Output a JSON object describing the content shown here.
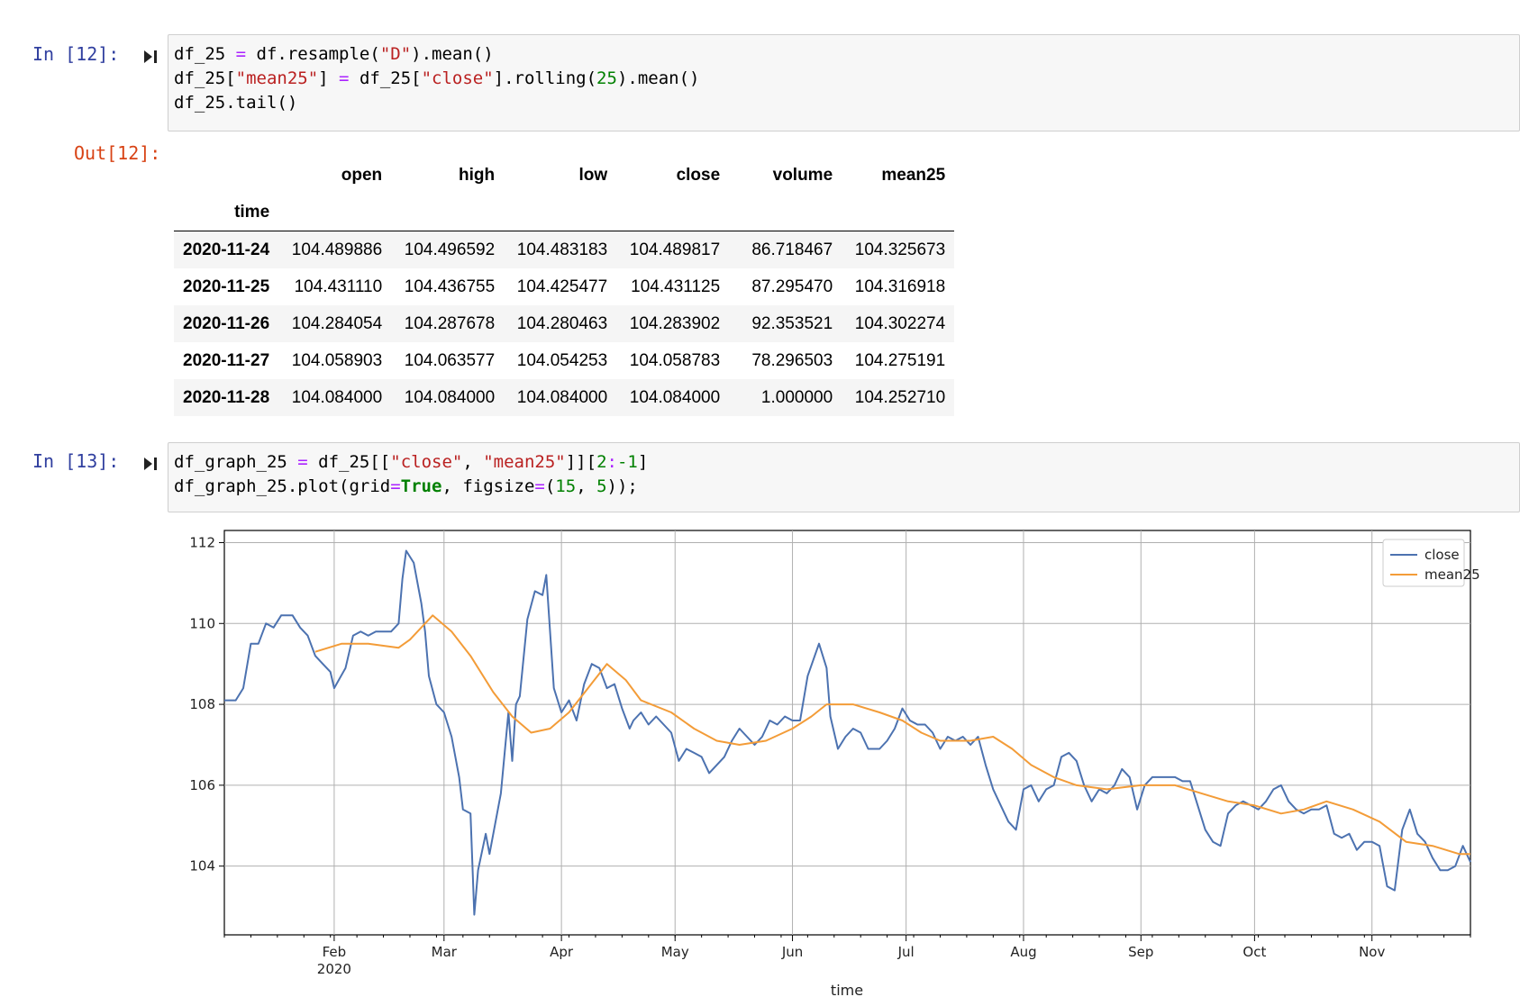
{
  "cells": {
    "in12": {
      "prompt": "In [12]:",
      "out_prompt": "Out[12]:"
    },
    "in13": {
      "prompt": "In [13]:"
    }
  },
  "code12": {
    "l1": {
      "a": "df_25 ",
      "b": "=",
      "c": " df.resample(",
      "d": "\"D\"",
      "e": ").mean()"
    },
    "l2": {
      "a": "df_25[",
      "b": "\"mean25\"",
      "c": "] ",
      "d": "=",
      "e": " df_25[",
      "f": "\"close\"",
      "g": "].rolling(",
      "h": "25",
      "i": ").mean()"
    },
    "l3": {
      "a": "df_25.tail()"
    }
  },
  "code13": {
    "l1": {
      "a": "df_graph_25 ",
      "b": "=",
      "c": " df_25[[",
      "d": "\"close\"",
      "e": ", ",
      "f": "\"mean25\"",
      "g": "]][",
      "h": "2",
      "i": ":",
      "j": "-1",
      "k": "]"
    },
    "l2": {
      "a": "df_graph_25.plot(grid",
      "b": "=",
      "c": "True",
      "d": ", figsize",
      "e": "=",
      "f": "(",
      "g": "15",
      "h": ", ",
      "i": "5",
      "j": "));"
    }
  },
  "table": {
    "columns": [
      "open",
      "high",
      "low",
      "close",
      "volume",
      "mean25"
    ],
    "index_name": "time",
    "rows": [
      {
        "index": "2020-11-24",
        "values": [
          "104.489886",
          "104.496592",
          "104.483183",
          "104.489817",
          "86.718467",
          "104.325673"
        ]
      },
      {
        "index": "2020-11-25",
        "values": [
          "104.431110",
          "104.436755",
          "104.425477",
          "104.431125",
          "87.295470",
          "104.316918"
        ]
      },
      {
        "index": "2020-11-26",
        "values": [
          "104.284054",
          "104.287678",
          "104.280463",
          "104.283902",
          "92.353521",
          "104.302274"
        ]
      },
      {
        "index": "2020-11-27",
        "values": [
          "104.058903",
          "104.063577",
          "104.054253",
          "104.058783",
          "78.296503",
          "104.275191"
        ]
      },
      {
        "index": "2020-11-28",
        "values": [
          "104.084000",
          "104.084000",
          "104.084000",
          "104.084000",
          "1.000000",
          "104.252710"
        ]
      }
    ]
  },
  "colors": {
    "close": "#4c72b0",
    "mean25": "#f39c38",
    "prompt_in": "#303f9f",
    "prompt_out": "#d84315"
  },
  "chart_data": {
    "type": "line",
    "xlabel": "time",
    "ylabel": "",
    "grid": true,
    "legend_position": "top-right",
    "x_tick_labels": [
      "Feb",
      "Mar",
      "Apr",
      "May",
      "Jun",
      "Jul",
      "Aug",
      "Sep",
      "Oct",
      "Nov"
    ],
    "x_tick_year": "2020",
    "x_range": [
      "2020-01-03",
      "2020-11-27"
    ],
    "ylim": [
      102.3,
      112.3
    ],
    "y_ticks": [
      104,
      106,
      108,
      110,
      112
    ],
    "series": [
      {
        "name": "close",
        "points": [
          [
            "2020-01-03",
            108.1
          ],
          [
            "2020-01-06",
            108.1
          ],
          [
            "2020-01-08",
            108.4
          ],
          [
            "2020-01-10",
            109.5
          ],
          [
            "2020-01-12",
            109.5
          ],
          [
            "2020-01-14",
            110.0
          ],
          [
            "2020-01-16",
            109.9
          ],
          [
            "2020-01-18",
            110.2
          ],
          [
            "2020-01-21",
            110.2
          ],
          [
            "2020-01-23",
            109.9
          ],
          [
            "2020-01-25",
            109.7
          ],
          [
            "2020-01-27",
            109.2
          ],
          [
            "2020-01-29",
            109.0
          ],
          [
            "2020-01-31",
            108.8
          ],
          [
            "2020-02-01",
            108.4
          ],
          [
            "2020-02-04",
            108.9
          ],
          [
            "2020-02-06",
            109.7
          ],
          [
            "2020-02-08",
            109.8
          ],
          [
            "2020-02-10",
            109.7
          ],
          [
            "2020-02-12",
            109.8
          ],
          [
            "2020-02-14",
            109.8
          ],
          [
            "2020-02-16",
            109.8
          ],
          [
            "2020-02-18",
            110.0
          ],
          [
            "2020-02-19",
            111.1
          ],
          [
            "2020-02-20",
            111.8
          ],
          [
            "2020-02-22",
            111.5
          ],
          [
            "2020-02-24",
            110.5
          ],
          [
            "2020-02-25",
            109.8
          ],
          [
            "2020-02-26",
            108.7
          ],
          [
            "2020-02-28",
            108.0
          ],
          [
            "2020-03-01",
            107.8
          ],
          [
            "2020-03-03",
            107.2
          ],
          [
            "2020-03-05",
            106.2
          ],
          [
            "2020-03-06",
            105.4
          ],
          [
            "2020-03-08",
            105.3
          ],
          [
            "2020-03-09",
            102.8
          ],
          [
            "2020-03-10",
            103.9
          ],
          [
            "2020-03-12",
            104.8
          ],
          [
            "2020-03-13",
            104.3
          ],
          [
            "2020-03-16",
            105.8
          ],
          [
            "2020-03-18",
            107.8
          ],
          [
            "2020-03-19",
            106.6
          ],
          [
            "2020-03-20",
            108.0
          ],
          [
            "2020-03-21",
            108.2
          ],
          [
            "2020-03-23",
            110.1
          ],
          [
            "2020-03-25",
            110.8
          ],
          [
            "2020-03-27",
            110.7
          ],
          [
            "2020-03-28",
            111.2
          ],
          [
            "2020-03-30",
            108.4
          ],
          [
            "2020-04-01",
            107.8
          ],
          [
            "2020-04-03",
            108.1
          ],
          [
            "2020-04-05",
            107.6
          ],
          [
            "2020-04-07",
            108.5
          ],
          [
            "2020-04-09",
            109.0
          ],
          [
            "2020-04-11",
            108.9
          ],
          [
            "2020-04-13",
            108.4
          ],
          [
            "2020-04-15",
            108.5
          ],
          [
            "2020-04-17",
            107.9
          ],
          [
            "2020-04-19",
            107.4
          ],
          [
            "2020-04-20",
            107.6
          ],
          [
            "2020-04-22",
            107.8
          ],
          [
            "2020-04-24",
            107.5
          ],
          [
            "2020-04-26",
            107.7
          ],
          [
            "2020-04-28",
            107.5
          ],
          [
            "2020-04-30",
            107.3
          ],
          [
            "2020-05-02",
            106.6
          ],
          [
            "2020-05-04",
            106.9
          ],
          [
            "2020-05-06",
            106.8
          ],
          [
            "2020-05-08",
            106.7
          ],
          [
            "2020-05-10",
            106.3
          ],
          [
            "2020-05-12",
            106.5
          ],
          [
            "2020-05-14",
            106.7
          ],
          [
            "2020-05-16",
            107.1
          ],
          [
            "2020-05-18",
            107.4
          ],
          [
            "2020-05-20",
            107.2
          ],
          [
            "2020-05-22",
            107.0
          ],
          [
            "2020-05-24",
            107.2
          ],
          [
            "2020-05-26",
            107.6
          ],
          [
            "2020-05-28",
            107.5
          ],
          [
            "2020-05-30",
            107.7
          ],
          [
            "2020-06-01",
            107.6
          ],
          [
            "2020-06-03",
            107.6
          ],
          [
            "2020-06-05",
            108.7
          ],
          [
            "2020-06-08",
            109.5
          ],
          [
            "2020-06-10",
            108.9
          ],
          [
            "2020-06-11",
            107.7
          ],
          [
            "2020-06-13",
            106.9
          ],
          [
            "2020-06-15",
            107.2
          ],
          [
            "2020-06-17",
            107.4
          ],
          [
            "2020-06-19",
            107.3
          ],
          [
            "2020-06-21",
            106.9
          ],
          [
            "2020-06-24",
            106.9
          ],
          [
            "2020-06-26",
            107.1
          ],
          [
            "2020-06-28",
            107.4
          ],
          [
            "2020-06-30",
            107.9
          ],
          [
            "2020-07-02",
            107.6
          ],
          [
            "2020-07-04",
            107.5
          ],
          [
            "2020-07-06",
            107.5
          ],
          [
            "2020-07-08",
            107.3
          ],
          [
            "2020-07-10",
            106.9
          ],
          [
            "2020-07-12",
            107.2
          ],
          [
            "2020-07-14",
            107.1
          ],
          [
            "2020-07-16",
            107.2
          ],
          [
            "2020-07-18",
            107.0
          ],
          [
            "2020-07-20",
            107.2
          ],
          [
            "2020-07-22",
            106.5
          ],
          [
            "2020-07-24",
            105.9
          ],
          [
            "2020-07-26",
            105.5
          ],
          [
            "2020-07-28",
            105.1
          ],
          [
            "2020-07-30",
            104.9
          ],
          [
            "2020-08-01",
            105.9
          ],
          [
            "2020-08-03",
            106.0
          ],
          [
            "2020-08-05",
            105.6
          ],
          [
            "2020-08-07",
            105.9
          ],
          [
            "2020-08-09",
            106.0
          ],
          [
            "2020-08-11",
            106.7
          ],
          [
            "2020-08-13",
            106.8
          ],
          [
            "2020-08-15",
            106.6
          ],
          [
            "2020-08-17",
            106.0
          ],
          [
            "2020-08-19",
            105.6
          ],
          [
            "2020-08-21",
            105.9
          ],
          [
            "2020-08-23",
            105.8
          ],
          [
            "2020-08-25",
            106.0
          ],
          [
            "2020-08-27",
            106.4
          ],
          [
            "2020-08-29",
            106.2
          ],
          [
            "2020-08-31",
            105.4
          ],
          [
            "2020-09-02",
            106.0
          ],
          [
            "2020-09-04",
            106.2
          ],
          [
            "2020-09-06",
            106.2
          ],
          [
            "2020-09-08",
            106.2
          ],
          [
            "2020-09-10",
            106.2
          ],
          [
            "2020-09-12",
            106.1
          ],
          [
            "2020-09-14",
            106.1
          ],
          [
            "2020-09-16",
            105.5
          ],
          [
            "2020-09-18",
            104.9
          ],
          [
            "2020-09-20",
            104.6
          ],
          [
            "2020-09-22",
            104.5
          ],
          [
            "2020-09-24",
            105.3
          ],
          [
            "2020-09-26",
            105.5
          ],
          [
            "2020-09-28",
            105.6
          ],
          [
            "2020-09-30",
            105.5
          ],
          [
            "2020-10-02",
            105.4
          ],
          [
            "2020-10-04",
            105.6
          ],
          [
            "2020-10-06",
            105.9
          ],
          [
            "2020-10-08",
            106.0
          ],
          [
            "2020-10-10",
            105.6
          ],
          [
            "2020-10-12",
            105.4
          ],
          [
            "2020-10-14",
            105.3
          ],
          [
            "2020-10-16",
            105.4
          ],
          [
            "2020-10-18",
            105.4
          ],
          [
            "2020-10-20",
            105.5
          ],
          [
            "2020-10-22",
            104.8
          ],
          [
            "2020-10-24",
            104.7
          ],
          [
            "2020-10-26",
            104.8
          ],
          [
            "2020-10-28",
            104.4
          ],
          [
            "2020-10-30",
            104.6
          ],
          [
            "2020-11-01",
            104.6
          ],
          [
            "2020-11-03",
            104.5
          ],
          [
            "2020-11-05",
            103.5
          ],
          [
            "2020-11-07",
            103.4
          ],
          [
            "2020-11-09",
            104.9
          ],
          [
            "2020-11-11",
            105.4
          ],
          [
            "2020-11-13",
            104.8
          ],
          [
            "2020-11-15",
            104.6
          ],
          [
            "2020-11-17",
            104.2
          ],
          [
            "2020-11-19",
            103.9
          ],
          [
            "2020-11-21",
            103.9
          ],
          [
            "2020-11-23",
            104.0
          ],
          [
            "2020-11-25",
            104.5
          ],
          [
            "2020-11-27",
            104.1
          ]
        ]
      },
      {
        "name": "mean25",
        "points": [
          [
            "2020-01-27",
            109.3
          ],
          [
            "2020-02-03",
            109.5
          ],
          [
            "2020-02-10",
            109.5
          ],
          [
            "2020-02-18",
            109.4
          ],
          [
            "2020-02-21",
            109.6
          ],
          [
            "2020-02-27",
            110.2
          ],
          [
            "2020-03-03",
            109.8
          ],
          [
            "2020-03-08",
            109.2
          ],
          [
            "2020-03-14",
            108.3
          ],
          [
            "2020-03-19",
            107.7
          ],
          [
            "2020-03-24",
            107.3
          ],
          [
            "2020-03-29",
            107.4
          ],
          [
            "2020-04-03",
            107.8
          ],
          [
            "2020-04-08",
            108.4
          ],
          [
            "2020-04-13",
            109.0
          ],
          [
            "2020-04-18",
            108.6
          ],
          [
            "2020-04-22",
            108.1
          ],
          [
            "2020-04-30",
            107.8
          ],
          [
            "2020-05-06",
            107.4
          ],
          [
            "2020-05-12",
            107.1
          ],
          [
            "2020-05-18",
            107.0
          ],
          [
            "2020-05-25",
            107.1
          ],
          [
            "2020-06-01",
            107.4
          ],
          [
            "2020-06-06",
            107.7
          ],
          [
            "2020-06-10",
            108.0
          ],
          [
            "2020-06-17",
            108.0
          ],
          [
            "2020-06-24",
            107.8
          ],
          [
            "2020-06-30",
            107.6
          ],
          [
            "2020-07-05",
            107.3
          ],
          [
            "2020-07-10",
            107.1
          ],
          [
            "2020-07-18",
            107.1
          ],
          [
            "2020-07-24",
            107.2
          ],
          [
            "2020-07-29",
            106.9
          ],
          [
            "2020-08-03",
            106.5
          ],
          [
            "2020-08-09",
            106.2
          ],
          [
            "2020-08-15",
            106.0
          ],
          [
            "2020-08-23",
            105.9
          ],
          [
            "2020-09-01",
            106.0
          ],
          [
            "2020-09-10",
            106.0
          ],
          [
            "2020-09-17",
            105.8
          ],
          [
            "2020-09-24",
            105.6
          ],
          [
            "2020-10-01",
            105.5
          ],
          [
            "2020-10-08",
            105.3
          ],
          [
            "2020-10-14",
            105.4
          ],
          [
            "2020-10-20",
            105.6
          ],
          [
            "2020-10-27",
            105.4
          ],
          [
            "2020-11-03",
            105.1
          ],
          [
            "2020-11-10",
            104.6
          ],
          [
            "2020-11-17",
            104.5
          ],
          [
            "2020-11-24",
            104.3
          ],
          [
            "2020-11-27",
            104.3
          ]
        ]
      }
    ]
  }
}
